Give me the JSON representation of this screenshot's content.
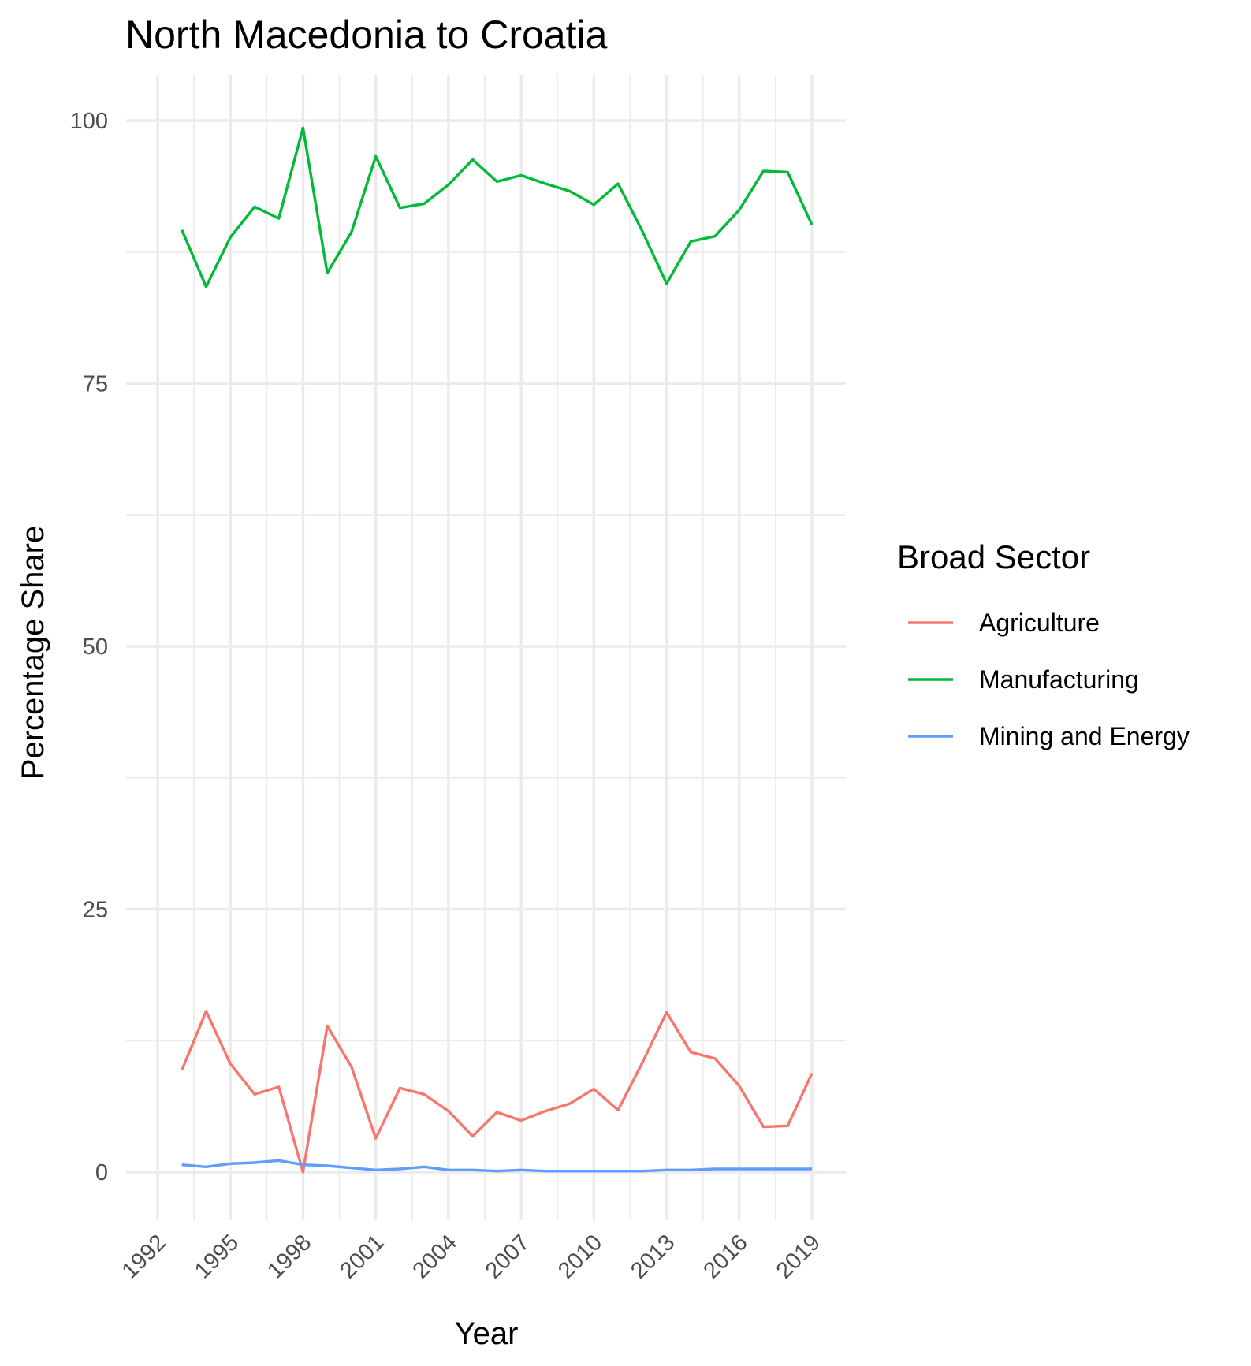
{
  "chart_data": {
    "type": "line",
    "title": "North Macedonia to Croatia",
    "xlabel": "Year",
    "ylabel": "Percentage Share",
    "xlim": [
      1992,
      2019
    ],
    "ylim": [
      -5,
      104
    ],
    "x_ticks": [
      1992,
      1995,
      1998,
      2001,
      2004,
      2007,
      2010,
      2013,
      2016,
      2019
    ],
    "y_ticks": [
      0,
      25,
      50,
      75,
      100
    ],
    "grid": true,
    "legend": {
      "title": "Broad Sector",
      "placement": "right"
    },
    "x": [
      1993,
      1994,
      1995,
      1996,
      1997,
      1998,
      1999,
      2000,
      2001,
      2002,
      2003,
      2004,
      2005,
      2006,
      2007,
      2008,
      2009,
      2010,
      2011,
      2012,
      2013,
      2014,
      2015,
      2016,
      2017,
      2018,
      2019
    ],
    "series": [
      {
        "name": "Agriculture",
        "color": "#F8766D",
        "values": [
          9.7,
          15.3,
          10.3,
          7.4,
          8.1,
          0.0,
          13.9,
          10.0,
          3.2,
          8.0,
          7.4,
          5.8,
          3.4,
          5.7,
          4.9,
          5.8,
          6.5,
          7.9,
          5.9,
          10.4,
          15.2,
          11.4,
          10.8,
          8.2,
          4.3,
          4.4,
          9.4
        ],
        "ylim": null
      },
      {
        "name": "Manufacturing",
        "color": "#00BA38",
        "values": [
          89.6,
          84.2,
          88.9,
          91.8,
          90.7,
          99.3,
          85.5,
          89.4,
          96.6,
          91.7,
          92.1,
          93.9,
          96.3,
          94.2,
          94.8,
          94.0,
          93.3,
          92.0,
          94.0,
          89.5,
          84.5,
          88.5,
          89.0,
          91.5,
          95.2,
          95.1,
          90.1
        ],
        "ylim": null
      },
      {
        "name": "Mining and Energy",
        "color": "#619CFF",
        "values": [
          0.7,
          0.5,
          0.8,
          0.9,
          1.1,
          0.7,
          0.6,
          0.4,
          0.2,
          0.3,
          0.5,
          0.2,
          0.2,
          0.1,
          0.2,
          0.1,
          0.1,
          0.1,
          0.1,
          0.1,
          0.2,
          0.2,
          0.3,
          0.3,
          0.3,
          0.3,
          0.3
        ],
        "ylim": null
      }
    ]
  }
}
